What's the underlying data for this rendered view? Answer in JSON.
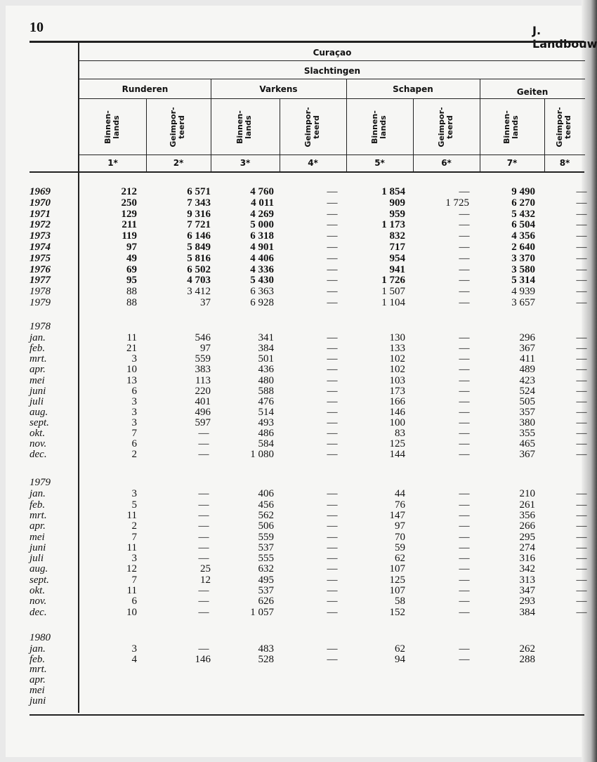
{
  "page_number": "10",
  "running_head": "J. Landbouw",
  "header": {
    "region": "Curaçao",
    "topic": "Slachtingen",
    "groups": [
      "Runderen",
      "Varkens",
      "Schapen",
      "Geiten"
    ],
    "subcolumns": [
      "Binnen-\nlands",
      "Geimpor-\nteerd",
      "Binnen-\nlands",
      "Geimpor-\nteerd",
      "Binnen-\nlands",
      "Geimpor-\nteerd",
      "Binnen-\nlands",
      "Geimpor-\nteerd"
    ],
    "column_numbers": [
      "1*",
      "2*",
      "3*",
      "4*",
      "5*",
      "6*",
      "7*",
      "8*"
    ]
  },
  "sections": [
    {
      "label": "",
      "rows": [
        {
          "label": "1969",
          "values": [
            "212",
            "6 571",
            "4 760",
            "—",
            "1 854",
            "—",
            "9 490",
            "—"
          ]
        },
        {
          "label": "1970",
          "values": [
            "250",
            "7 343",
            "4 011",
            "—",
            "909",
            "1 725",
            "6 270",
            "—"
          ]
        },
        {
          "label": "1971",
          "values": [
            "129",
            "9 316",
            "4 269",
            "—",
            "959",
            "—",
            "5 432",
            "—"
          ]
        },
        {
          "label": "1972",
          "values": [
            "211",
            "7 721",
            "5 000",
            "—",
            "1 173",
            "—",
            "6 504",
            "—"
          ]
        },
        {
          "label": "1973",
          "values": [
            "119",
            "6 146",
            "6 318",
            "—",
            "832",
            "—",
            "4 356",
            "—"
          ]
        },
        {
          "label": "1974",
          "values": [
            "97",
            "5 849",
            "4 901",
            "—",
            "717",
            "—",
            "2 640",
            "—"
          ]
        },
        {
          "label": "1975",
          "values": [
            "49",
            "5 816",
            "4 406",
            "—",
            "954",
            "—",
            "3 370",
            "—"
          ]
        },
        {
          "label": "1976",
          "values": [
            "69",
            "6 502",
            "4 336",
            "—",
            "941",
            "—",
            "3 580",
            "—"
          ]
        },
        {
          "label": "1977",
          "values": [
            "95",
            "4 703",
            "5 430",
            "—",
            "1 726",
            "—",
            "5 314",
            "—"
          ]
        },
        {
          "label": "1978",
          "values": [
            "88",
            "3 412",
            "6 363",
            "—",
            "1 507",
            "—",
            "4 939",
            "—"
          ]
        },
        {
          "label": "1979",
          "values": [
            "88",
            "37",
            "6 928",
            "—",
            "1 104",
            "—",
            "3 657",
            "—"
          ]
        }
      ]
    },
    {
      "label": "1978",
      "rows": [
        {
          "label": "jan.",
          "values": [
            "11",
            "546",
            "341",
            "—",
            "130",
            "—",
            "296",
            "—"
          ]
        },
        {
          "label": "feb.",
          "values": [
            "21",
            "97",
            "384",
            "—",
            "133",
            "—",
            "367",
            "—"
          ]
        },
        {
          "label": "mrt.",
          "values": [
            "3",
            "559",
            "501",
            "—",
            "102",
            "—",
            "411",
            "—"
          ]
        },
        {
          "label": "apr.",
          "values": [
            "10",
            "383",
            "436",
            "—",
            "102",
            "—",
            "489",
            "—"
          ]
        },
        {
          "label": "mei",
          "values": [
            "13",
            "113",
            "480",
            "—",
            "103",
            "—",
            "423",
            "—"
          ]
        },
        {
          "label": "juni",
          "values": [
            "6",
            "220",
            "588",
            "—",
            "173",
            "—",
            "524",
            "—"
          ]
        },
        {
          "label": "juli",
          "values": [
            "3",
            "401",
            "476",
            "—",
            "166",
            "—",
            "505",
            "—"
          ]
        },
        {
          "label": "aug.",
          "values": [
            "3",
            "496",
            "514",
            "—",
            "146",
            "—",
            "357",
            "—"
          ]
        },
        {
          "label": "sept.",
          "values": [
            "3",
            "597",
            "493",
            "—",
            "100",
            "—",
            "380",
            "—"
          ]
        },
        {
          "label": "okt.",
          "values": [
            "7",
            "—",
            "486",
            "—",
            "83",
            "—",
            "355",
            "—"
          ]
        },
        {
          "label": "nov.",
          "values": [
            "6",
            "—",
            "584",
            "—",
            "125",
            "—",
            "465",
            "—"
          ]
        },
        {
          "label": "dec.",
          "values": [
            "2",
            "—",
            "1 080",
            "—",
            "144",
            "—",
            "367",
            "—"
          ]
        }
      ]
    },
    {
      "label": "1979",
      "rows": [
        {
          "label": "jan.",
          "values": [
            "3",
            "—",
            "406",
            "—",
            "44",
            "—",
            "210",
            "—"
          ]
        },
        {
          "label": "feb.",
          "values": [
            "5",
            "—",
            "456",
            "—",
            "76",
            "—",
            "261",
            "—"
          ]
        },
        {
          "label": "mrt.",
          "values": [
            "11",
            "—",
            "562",
            "—",
            "147",
            "—",
            "356",
            "—"
          ]
        },
        {
          "label": "apr.",
          "values": [
            "2",
            "—",
            "506",
            "—",
            "97",
            "—",
            "266",
            "—"
          ]
        },
        {
          "label": "mei",
          "values": [
            "7",
            "—",
            "559",
            "—",
            "70",
            "—",
            "295",
            "—"
          ]
        },
        {
          "label": "juni",
          "values": [
            "11",
            "—",
            "537",
            "—",
            "59",
            "—",
            "274",
            "—"
          ]
        },
        {
          "label": "juli",
          "values": [
            "3",
            "—",
            "555",
            "—",
            "62",
            "—",
            "316",
            "—"
          ]
        },
        {
          "label": "aug.",
          "values": [
            "12",
            "25",
            "632",
            "—",
            "107",
            "—",
            "342",
            "—"
          ]
        },
        {
          "label": "sept.",
          "values": [
            "7",
            "12",
            "495",
            "—",
            "125",
            "—",
            "313",
            "—"
          ]
        },
        {
          "label": "okt.",
          "values": [
            "11",
            "—",
            "537",
            "—",
            "107",
            "—",
            "347",
            "—"
          ]
        },
        {
          "label": "nov.",
          "values": [
            "6",
            "—",
            "626",
            "—",
            "58",
            "—",
            "293",
            "—"
          ]
        },
        {
          "label": "dec.",
          "values": [
            "10",
            "—",
            "1 057",
            "—",
            "152",
            "—",
            "384",
            "—"
          ]
        }
      ]
    },
    {
      "label": "1980",
      "rows": [
        {
          "label": "jan.",
          "values": [
            "3",
            "—",
            "483",
            "—",
            "62",
            "—",
            "262",
            ""
          ]
        },
        {
          "label": "feb.",
          "values": [
            "4",
            "146",
            "528",
            "—",
            "94",
            "—",
            "288",
            ""
          ]
        },
        {
          "label": "mrt.",
          "values": [
            "",
            "",
            "",
            "",
            "",
            "",
            "",
            ""
          ]
        },
        {
          "label": "apr.",
          "values": [
            "",
            "",
            "",
            "",
            "",
            "",
            "",
            ""
          ]
        },
        {
          "label": "mei",
          "values": [
            "",
            "",
            "",
            "",
            "",
            "",
            "",
            ""
          ]
        },
        {
          "label": "juni",
          "values": [
            "",
            "",
            "",
            "",
            "",
            "",
            "",
            ""
          ]
        }
      ]
    }
  ]
}
